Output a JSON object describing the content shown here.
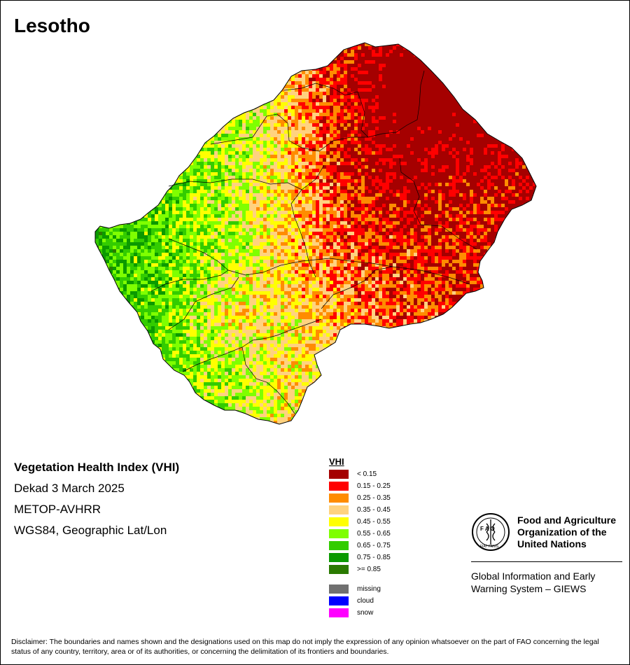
{
  "map": {
    "title": "Lesotho",
    "product_title": "Vegetation Health Index (VHI)",
    "dekad": "Dekad 3 March 2025",
    "sensor": "METOP-AVHRR",
    "projection": "WGS84, Geographic Lat/Lon"
  },
  "legend": {
    "title": "VHI",
    "classes": [
      {
        "label": "< 0.15",
        "color": "#a50000"
      },
      {
        "label": "0.15 - 0.25",
        "color": "#ff0000"
      },
      {
        "label": "0.25 - 0.35",
        "color": "#ff8c00"
      },
      {
        "label": "0.35 - 0.45",
        "color": "#ffd27f"
      },
      {
        "label": "0.45 - 0.55",
        "color": "#ffff00"
      },
      {
        "label": "0.55 - 0.65",
        "color": "#7fff00"
      },
      {
        "label": "0.65 - 0.75",
        "color": "#33cc00"
      },
      {
        "label": "0.75 - 0.85",
        "color": "#0b9a00"
      },
      {
        "label": ">= 0.85",
        "color": "#2a7a00"
      }
    ],
    "special": [
      {
        "label": "missing",
        "color": "#707070"
      },
      {
        "label": "cloud",
        "color": "#0000ff"
      },
      {
        "label": "snow",
        "color": "#ff00ff"
      }
    ]
  },
  "organization": {
    "fao_name": "Food and Agriculture Organization of the United Nations",
    "giews_name": "Global Information and Early Warning System – GIEWS",
    "logo_letters": "F A O",
    "logo_motto": "FIAT PANIS"
  },
  "disclaimer": "Disclaimer: The boundaries and names shown and the designations used on this map do not imply the expression of any opinion whatsoever on the part of FAO concerning the legal status of any country, territory, area or of its authorities, or concerning the delimitation of its frontiers and boundaries."
}
